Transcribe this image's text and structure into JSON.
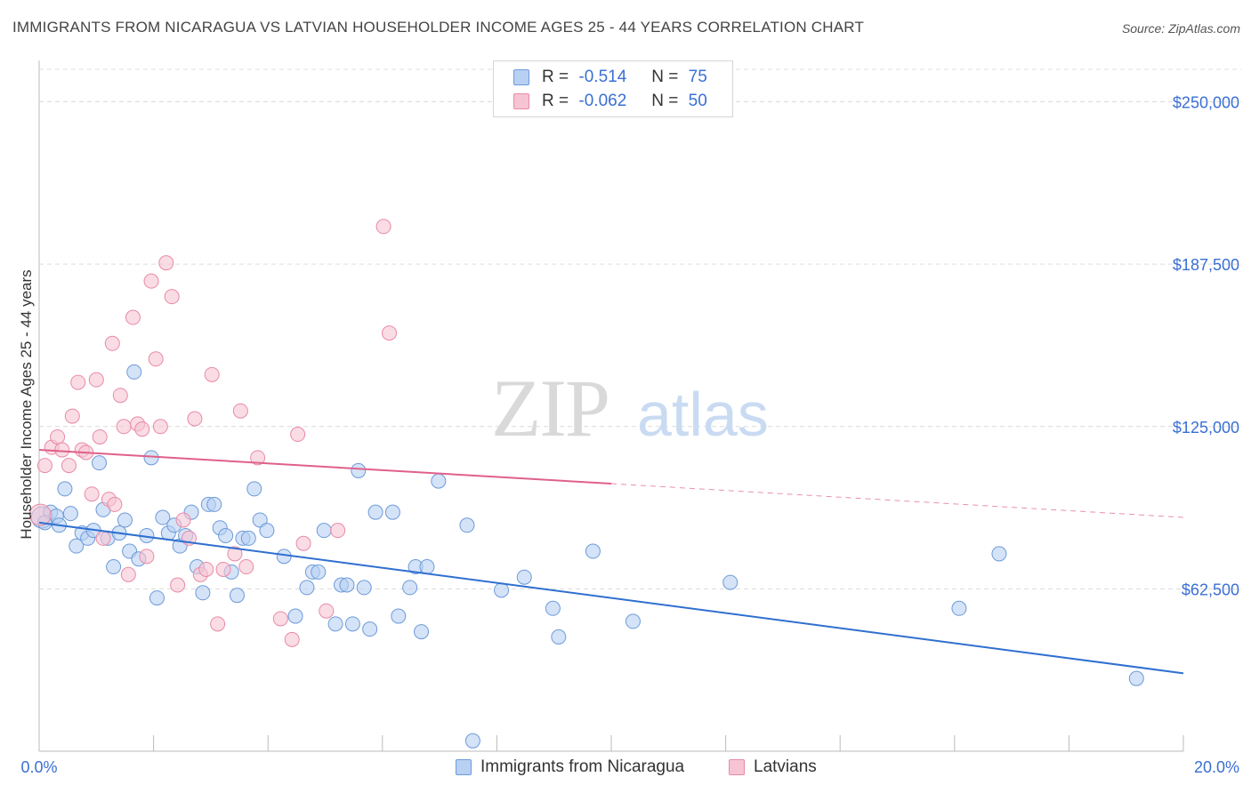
{
  "title": "IMMIGRANTS FROM NICARAGUA VS LATVIAN HOUSEHOLDER INCOME AGES 25 - 44 YEARS CORRELATION CHART",
  "source": "Source: ZipAtlas.com",
  "watermark": {
    "part1": "ZIP",
    "part2": "atlas"
  },
  "legend": {
    "rows": [
      {
        "r_label": "R =",
        "r_value": "-0.514",
        "n_label": "N =",
        "n_value": "75"
      },
      {
        "r_label": "R =",
        "r_value": "-0.062",
        "n_label": "N =",
        "n_value": "50"
      }
    ]
  },
  "colors": {
    "blue_fill": "#b8d0f2",
    "blue_stroke": "#6d9ad9",
    "blue_line": "#2f6fd0",
    "pink_fill": "#f7c4d4",
    "pink_stroke": "#e88aa6",
    "pink_line": "#e0608a",
    "axis_label": "#3a6fd4",
    "grid": "#dcdcdc"
  },
  "chart_data": {
    "type": "scatter",
    "ylabel": "Householder Income Ages 25 - 44 years",
    "xlim": [
      0,
      20
    ],
    "ylim": [
      0,
      262500
    ],
    "x_tick_labels": [
      "0.0%",
      "20.0%"
    ],
    "y_ticks": [
      62500,
      125000,
      187500,
      250000
    ],
    "y_tick_labels": [
      "$62,500",
      "$125,000",
      "$187,500",
      "$250,000"
    ],
    "grid": true,
    "series": [
      {
        "name": "Immigrants from Nicaragua",
        "color": "blue",
        "trend": {
          "x": [
            0,
            20
          ],
          "y": [
            88000,
            30000
          ]
        },
        "points": [
          [
            0.05,
            90000
          ],
          [
            0.2,
            92000
          ],
          [
            0.3,
            90500
          ],
          [
            0.45,
            101000
          ],
          [
            0.55,
            91500
          ],
          [
            0.65,
            79000
          ],
          [
            0.75,
            84000
          ],
          [
            0.85,
            82000
          ],
          [
            0.95,
            85000
          ],
          [
            1.05,
            111000
          ],
          [
            1.12,
            93000
          ],
          [
            1.2,
            82000
          ],
          [
            1.3,
            71000
          ],
          [
            1.4,
            84000
          ],
          [
            1.5,
            89000
          ],
          [
            1.58,
            77000
          ],
          [
            1.66,
            146000
          ],
          [
            1.74,
            74000
          ],
          [
            1.88,
            83000
          ],
          [
            1.96,
            113000
          ],
          [
            2.06,
            59000
          ],
          [
            2.16,
            90000
          ],
          [
            2.26,
            84000
          ],
          [
            2.36,
            87000
          ],
          [
            2.46,
            79000
          ],
          [
            2.56,
            83000
          ],
          [
            2.66,
            92000
          ],
          [
            2.76,
            71000
          ],
          [
            2.86,
            61000
          ],
          [
            2.96,
            95000
          ],
          [
            3.06,
            95000
          ],
          [
            3.16,
            86000
          ],
          [
            3.26,
            83000
          ],
          [
            3.36,
            69000
          ],
          [
            3.46,
            60000
          ],
          [
            3.56,
            82000
          ],
          [
            3.66,
            82000
          ],
          [
            3.76,
            101000
          ],
          [
            3.86,
            89000
          ],
          [
            3.98,
            85000
          ],
          [
            4.28,
            75000
          ],
          [
            4.48,
            52000
          ],
          [
            4.68,
            63000
          ],
          [
            4.78,
            69000
          ],
          [
            4.88,
            69000
          ],
          [
            4.98,
            85000
          ],
          [
            5.18,
            49000
          ],
          [
            5.28,
            64000
          ],
          [
            5.38,
            64000
          ],
          [
            5.48,
            49000
          ],
          [
            5.58,
            108000
          ],
          [
            5.68,
            63000
          ],
          [
            5.78,
            47000
          ],
          [
            5.88,
            92000
          ],
          [
            6.18,
            92000
          ],
          [
            6.28,
            52000
          ],
          [
            6.48,
            63000
          ],
          [
            6.58,
            71000
          ],
          [
            6.68,
            46000
          ],
          [
            6.78,
            71000
          ],
          [
            6.98,
            104000
          ],
          [
            7.48,
            87000
          ],
          [
            7.58,
            4000
          ],
          [
            8.08,
            62000
          ],
          [
            8.48,
            67000
          ],
          [
            8.98,
            55000
          ],
          [
            9.08,
            44000
          ],
          [
            9.68,
            77000
          ],
          [
            10.38,
            50000
          ],
          [
            12.08,
            65000
          ],
          [
            16.08,
            55000
          ],
          [
            16.78,
            76000
          ],
          [
            19.18,
            28000
          ],
          [
            0.1,
            88000
          ],
          [
            0.35,
            87000
          ]
        ]
      },
      {
        "name": "Latvians",
        "color": "pink",
        "trend": {
          "x": [
            0,
            20
          ],
          "y": [
            116000,
            90000
          ],
          "solid_until": 10
        },
        "points": [
          [
            0.02,
            91000
          ],
          [
            0.1,
            110000
          ],
          [
            0.22,
            117000
          ],
          [
            0.32,
            121000
          ],
          [
            0.4,
            116000
          ],
          [
            0.52,
            110000
          ],
          [
            0.58,
            129000
          ],
          [
            0.68,
            142000
          ],
          [
            0.75,
            116000
          ],
          [
            0.82,
            115000
          ],
          [
            0.92,
            99000
          ],
          [
            1.0,
            143000
          ],
          [
            1.06,
            121000
          ],
          [
            1.12,
            82000
          ],
          [
            1.22,
            97000
          ],
          [
            1.28,
            157000
          ],
          [
            1.32,
            95000
          ],
          [
            1.42,
            137000
          ],
          [
            1.48,
            125000
          ],
          [
            1.56,
            68000
          ],
          [
            1.64,
            167000
          ],
          [
            1.72,
            126000
          ],
          [
            1.8,
            124000
          ],
          [
            1.88,
            75000
          ],
          [
            1.96,
            181000
          ],
          [
            2.04,
            151000
          ],
          [
            2.12,
            125000
          ],
          [
            2.22,
            188000
          ],
          [
            2.32,
            175000
          ],
          [
            2.42,
            64000
          ],
          [
            2.52,
            89000
          ],
          [
            2.62,
            82000
          ],
          [
            2.72,
            128000
          ],
          [
            2.82,
            68000
          ],
          [
            2.92,
            70000
          ],
          [
            3.02,
            145000
          ],
          [
            3.12,
            49000
          ],
          [
            3.22,
            70000
          ],
          [
            3.42,
            76000
          ],
          [
            3.52,
            131000
          ],
          [
            3.62,
            71000
          ],
          [
            3.82,
            113000
          ],
          [
            4.22,
            51000
          ],
          [
            4.42,
            43000
          ],
          [
            4.52,
            122000
          ],
          [
            4.62,
            80000
          ],
          [
            5.02,
            54000
          ],
          [
            5.22,
            85000
          ],
          [
            6.02,
            202000
          ],
          [
            6.12,
            161000
          ]
        ]
      }
    ]
  },
  "bottom_legend": [
    "Immigrants from Nicaragua",
    "Latvians"
  ]
}
